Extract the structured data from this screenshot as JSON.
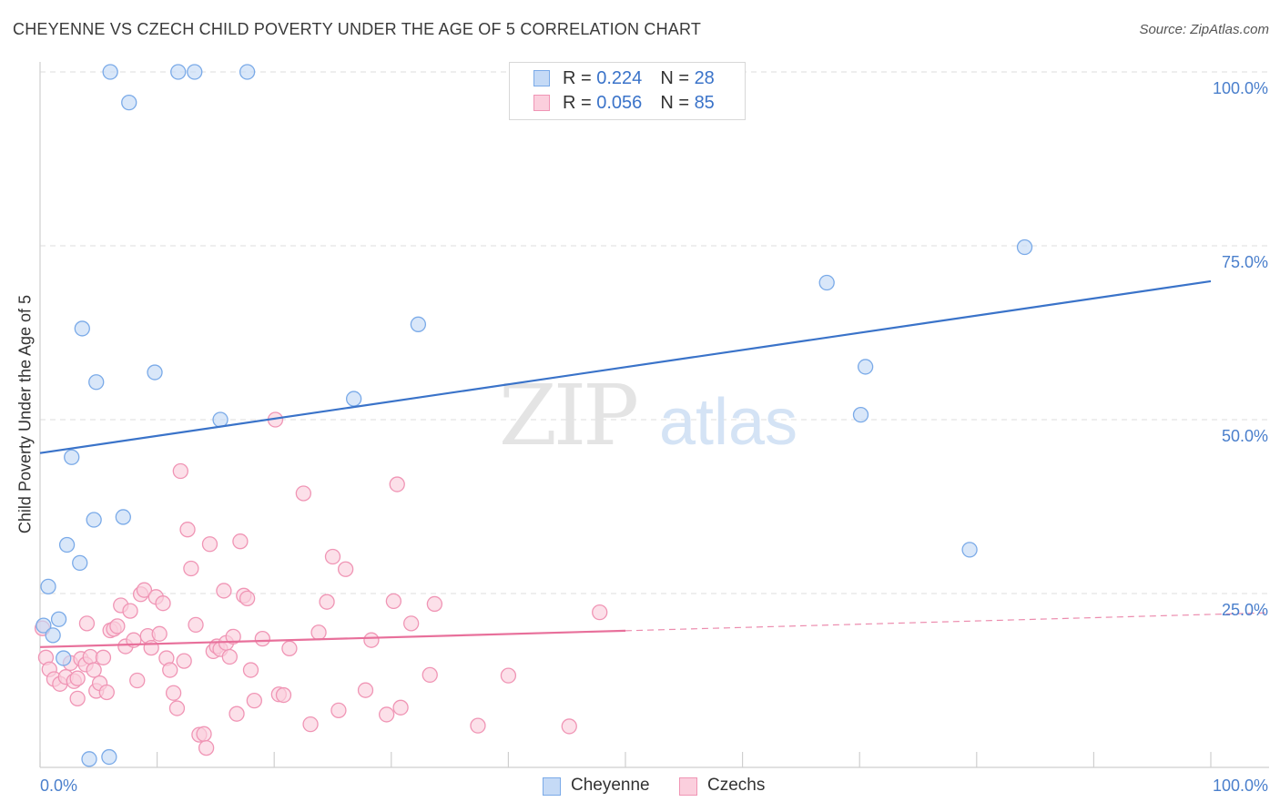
{
  "title": "CHEYENNE VS CZECH CHILD POVERTY UNDER THE AGE OF 5 CORRELATION CHART",
  "source": "Source: ZipAtlas.com",
  "watermark": {
    "zip": "ZIP",
    "atlas": "atlas"
  },
  "legend_top": {
    "rows": [
      {
        "r_label": "R = ",
        "r_value": "0.224",
        "n_label": "N = ",
        "n_value": "28",
        "color": "#7aaae8",
        "fill": "#c5daf6"
      },
      {
        "r_label": "R = ",
        "r_value": "0.056",
        "n_label": "N = ",
        "n_value": "85",
        "color": "#f095b5",
        "fill": "#fbcfdd"
      }
    ]
  },
  "legend_bottom": [
    {
      "label": "Cheyenne",
      "color": "#7aaae8",
      "fill": "#c5daf6"
    },
    {
      "label": "Czechs",
      "color": "#f095b5",
      "fill": "#fbcfdd"
    }
  ],
  "chart_data": {
    "type": "scatter",
    "title": "CHEYENNE VS CZECH CHILD POVERTY UNDER THE AGE OF 5 CORRELATION CHART",
    "xlabel": "",
    "ylabel": "Child Poverty Under the Age of 5",
    "xlim": [
      0,
      100
    ],
    "ylim": [
      0,
      100
    ],
    "x_tick_labels": [
      {
        "value": 0,
        "label": "0.0%"
      },
      {
        "value": 100,
        "label": "100.0%"
      }
    ],
    "y_tick_labels": [
      {
        "value": 25,
        "label": "25.0%"
      },
      {
        "value": 50,
        "label": "50.0%"
      },
      {
        "value": 75,
        "label": "75.0%"
      },
      {
        "value": 100,
        "label": "100.0%"
      }
    ],
    "grid": "horizontal dashed",
    "legend_position": "top-center",
    "series": [
      {
        "name": "Cheyenne",
        "color": "#3a73c9",
        "marker_fill": "#c5daf6",
        "marker_stroke": "#7aaae8",
        "trend": {
          "x": [
            0,
            100
          ],
          "y": [
            45.2,
            69.9
          ],
          "solid_to": 100
        },
        "points": [
          [
            0.3,
            20.4
          ],
          [
            1.1,
            19.0
          ],
          [
            0.7,
            26.0
          ],
          [
            1.6,
            21.3
          ],
          [
            2.0,
            15.7
          ],
          [
            2.3,
            32.0
          ],
          [
            3.4,
            29.4
          ],
          [
            2.7,
            44.6
          ],
          [
            4.6,
            35.6
          ],
          [
            7.1,
            36.0
          ],
          [
            3.6,
            63.1
          ],
          [
            4.8,
            55.4
          ],
          [
            9.8,
            56.8
          ],
          [
            15.4,
            50.0
          ],
          [
            26.8,
            53.0
          ],
          [
            32.3,
            63.7
          ],
          [
            6.0,
            100.0
          ],
          [
            11.8,
            100.0
          ],
          [
            13.2,
            100.0
          ],
          [
            17.7,
            100.0
          ],
          [
            7.6,
            95.6
          ],
          [
            4.2,
            1.2
          ],
          [
            5.9,
            1.5
          ],
          [
            67.2,
            69.7
          ],
          [
            70.5,
            57.6
          ],
          [
            70.1,
            50.7
          ],
          [
            79.4,
            31.3
          ],
          [
            84.1,
            74.8
          ]
        ]
      },
      {
        "name": "Czechs",
        "color": "#e8709b",
        "marker_fill": "#fbcfdd",
        "marker_stroke": "#f095b5",
        "trend": {
          "x": [
            0,
            100
          ],
          "y": [
            17.3,
            22.0
          ],
          "solid_to": 50
        },
        "points": [
          [
            0.2,
            20.0
          ],
          [
            0.5,
            15.8
          ],
          [
            0.8,
            14.1
          ],
          [
            1.2,
            12.7
          ],
          [
            1.7,
            12.0
          ],
          [
            2.2,
            13.0
          ],
          [
            2.6,
            15.0
          ],
          [
            2.9,
            12.4
          ],
          [
            3.2,
            12.8
          ],
          [
            3.5,
            15.6
          ],
          [
            3.9,
            14.8
          ],
          [
            4.0,
            20.7
          ],
          [
            4.3,
            15.9
          ],
          [
            4.6,
            14.0
          ],
          [
            4.8,
            11.0
          ],
          [
            5.1,
            12.1
          ],
          [
            5.4,
            15.8
          ],
          [
            5.7,
            10.8
          ],
          [
            6.0,
            19.7
          ],
          [
            6.3,
            19.9
          ],
          [
            6.6,
            20.3
          ],
          [
            6.9,
            23.3
          ],
          [
            7.3,
            17.4
          ],
          [
            7.7,
            22.5
          ],
          [
            8.0,
            18.3
          ],
          [
            8.3,
            12.5
          ],
          [
            8.6,
            24.9
          ],
          [
            8.9,
            25.5
          ],
          [
            9.2,
            18.9
          ],
          [
            9.5,
            17.2
          ],
          [
            9.9,
            24.5
          ],
          [
            10.2,
            19.2
          ],
          [
            10.5,
            23.6
          ],
          [
            10.8,
            15.7
          ],
          [
            11.1,
            14.0
          ],
          [
            11.4,
            10.7
          ],
          [
            11.7,
            8.5
          ],
          [
            12.0,
            42.6
          ],
          [
            12.3,
            15.3
          ],
          [
            12.6,
            34.2
          ],
          [
            12.9,
            28.6
          ],
          [
            13.3,
            20.5
          ],
          [
            13.6,
            4.7
          ],
          [
            14.0,
            4.8
          ],
          [
            14.2,
            2.8
          ],
          [
            14.5,
            32.1
          ],
          [
            14.8,
            16.7
          ],
          [
            15.1,
            17.4
          ],
          [
            15.4,
            17.0
          ],
          [
            15.7,
            25.4
          ],
          [
            15.9,
            17.9
          ],
          [
            16.2,
            15.9
          ],
          [
            16.5,
            18.8
          ],
          [
            16.8,
            7.7
          ],
          [
            17.1,
            32.5
          ],
          [
            17.4,
            24.7
          ],
          [
            17.7,
            24.3
          ],
          [
            18.0,
            14.0
          ],
          [
            18.3,
            9.6
          ],
          [
            19.0,
            18.5
          ],
          [
            20.1,
            50.0
          ],
          [
            20.4,
            10.5
          ],
          [
            20.8,
            10.4
          ],
          [
            21.3,
            17.1
          ],
          [
            22.5,
            39.4
          ],
          [
            23.1,
            6.2
          ],
          [
            23.8,
            19.4
          ],
          [
            24.5,
            23.8
          ],
          [
            25.0,
            30.3
          ],
          [
            25.5,
            8.2
          ],
          [
            26.1,
            28.5
          ],
          [
            27.8,
            11.1
          ],
          [
            28.3,
            18.3
          ],
          [
            29.6,
            7.6
          ],
          [
            30.2,
            23.9
          ],
          [
            30.5,
            40.7
          ],
          [
            30.8,
            8.6
          ],
          [
            31.7,
            20.7
          ],
          [
            33.3,
            13.3
          ],
          [
            33.7,
            23.5
          ],
          [
            37.4,
            6.0
          ],
          [
            40.0,
            13.2
          ],
          [
            45.2,
            5.9
          ],
          [
            47.8,
            22.3
          ],
          [
            3.2,
            9.9
          ]
        ]
      }
    ]
  }
}
